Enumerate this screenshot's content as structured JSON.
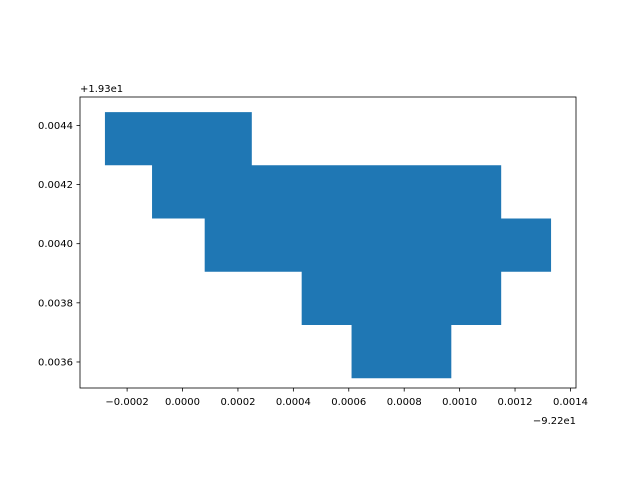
{
  "chart_data": {
    "type": "area",
    "title": "",
    "xlabel": "",
    "ylabel": "",
    "color": "#1f77b4",
    "x_offset_text": "−9.22e1",
    "y_offset_text": "+1.93e1",
    "xlim": [
      -0.00037,
      0.00142
    ],
    "ylim": [
      0.003512,
      0.004496
    ],
    "x_ticks": [
      -0.0002,
      0.0,
      0.0002,
      0.0004,
      0.0006,
      0.0008,
      0.001,
      0.0012,
      0.0014
    ],
    "x_tick_labels": [
      "−0.0002",
      "0.0000",
      "0.0002",
      "0.0004",
      "0.0006",
      "0.0008",
      "0.0010",
      "0.0012",
      "0.0014"
    ],
    "y_ticks": [
      0.0036,
      0.0038,
      0.004,
      0.0042,
      0.0044
    ],
    "y_tick_labels": [
      "0.0036",
      "0.0038",
      "0.0040",
      "0.0042",
      "0.0044"
    ],
    "grid": false,
    "polygon": [
      [
        -0.00028,
        0.004445
      ],
      [
        0.00025,
        0.004445
      ],
      [
        0.00025,
        0.004265
      ],
      [
        0.00115,
        0.004265
      ],
      [
        0.00115,
        0.004085
      ],
      [
        0.00133,
        0.004085
      ],
      [
        0.00133,
        0.003905
      ],
      [
        0.00115,
        0.003905
      ],
      [
        0.00115,
        0.003725
      ],
      [
        0.00097,
        0.003725
      ],
      [
        0.00097,
        0.003545
      ],
      [
        0.00061,
        0.003545
      ],
      [
        0.00061,
        0.003725
      ],
      [
        0.00043,
        0.003725
      ],
      [
        0.00043,
        0.003905
      ],
      [
        8e-05,
        0.003905
      ],
      [
        8e-05,
        0.004085
      ],
      [
        -0.00011,
        0.004085
      ],
      [
        -0.00011,
        0.004265
      ],
      [
        -0.00028,
        0.004265
      ]
    ]
  }
}
